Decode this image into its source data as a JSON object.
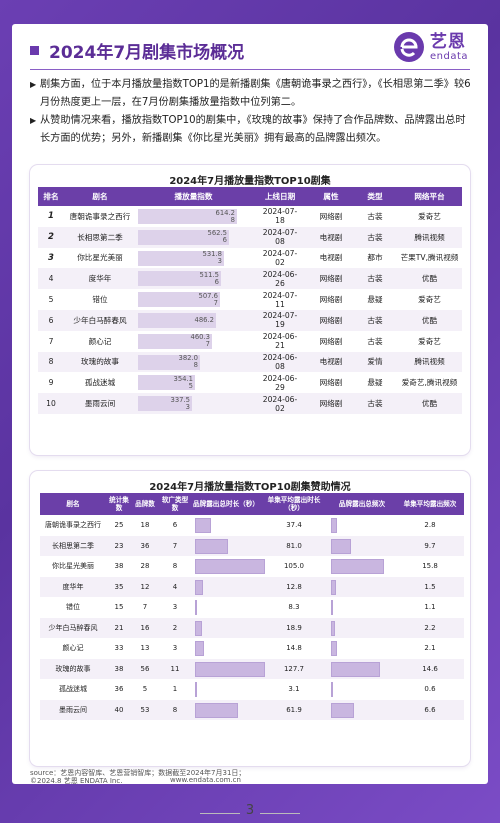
{
  "header": {
    "title": "2024年7月剧集市场概况",
    "logo_cn": "艺恩",
    "logo_en": "endata"
  },
  "bullets": [
    "剧集方面，位于本月播放量指数TOP1的是新播剧集《唐朝诡事录之西行》，《长相思第二季》较6月份热度更上一层，在7月份剧集播放量指数中位列第二。",
    "从赞助情况来看，播放指数TOP10的剧集中，《玫瑰的故事》保持了合作品牌数、品牌露出总时长方面的优势；另外，新播剧集《你比星光美丽》拥有最高的品牌露出频次。"
  ],
  "table1": {
    "title": "2024年7月播放量指数TOP10剧集",
    "headers": [
      "排名",
      "剧名",
      "播放量指数",
      "上线日期",
      "属性",
      "类型",
      "网络平台"
    ],
    "max_index": 700,
    "rows": [
      {
        "rank": "1",
        "name": "唐朝诡事录之西行",
        "index": 614.28,
        "index_label": "614.2\n8",
        "date": "2024-07-\n18",
        "attr": "网络剧",
        "genre": "古装",
        "platform": "爱奇艺"
      },
      {
        "rank": "2",
        "name": "长相思第二季",
        "index": 562.56,
        "index_label": "562.5\n6",
        "date": "2024-07-\n08",
        "attr": "电视剧",
        "genre": "古装",
        "platform": "腾讯视频"
      },
      {
        "rank": "3",
        "name": "你比星光美丽",
        "index": 531.83,
        "index_label": "531.8\n3",
        "date": "2024-07-\n02",
        "attr": "电视剧",
        "genre": "都市",
        "platform": "芒果TV,腾讯视频"
      },
      {
        "rank": "4",
        "name": "度华年",
        "index": 511.56,
        "index_label": "511.5\n6",
        "date": "2024-06-\n26",
        "attr": "网络剧",
        "genre": "古装",
        "platform": "优酷"
      },
      {
        "rank": "5",
        "name": "错位",
        "index": 507.67,
        "index_label": "507.6\n7",
        "date": "2024-07-\n11",
        "attr": "网络剧",
        "genre": "悬疑",
        "platform": "爱奇艺"
      },
      {
        "rank": "6",
        "name": "少年白马醉春风",
        "index": 486.2,
        "index_label": "486.2",
        "date": "2024-07-\n19",
        "attr": "网络剧",
        "genre": "古装",
        "platform": "优酷"
      },
      {
        "rank": "7",
        "name": "颜心记",
        "index": 460.37,
        "index_label": "460.3\n7",
        "date": "2024-06-\n21",
        "attr": "网络剧",
        "genre": "古装",
        "platform": "爱奇艺"
      },
      {
        "rank": "8",
        "name": "玫瑰的故事",
        "index": 382.08,
        "index_label": "382.0\n8",
        "date": "2024-06-\n08",
        "attr": "电视剧",
        "genre": "爱情",
        "platform": "腾讯视频"
      },
      {
        "rank": "9",
        "name": "孤战迷城",
        "index": 354.15,
        "index_label": "354.1\n5",
        "date": "2024-06-\n29",
        "attr": "网络剧",
        "genre": "悬疑",
        "platform": "爱奇艺,腾讯视频"
      },
      {
        "rank": "10",
        "name": "墨雨云间",
        "index": 337.53,
        "index_label": "337.5\n3",
        "date": "2024-06-\n02",
        "attr": "网络剧",
        "genre": "古装",
        "platform": "优酷"
      }
    ]
  },
  "table2": {
    "title": "2024年7月播放量指数TOP10剧集赞助情况",
    "headers": [
      "剧名",
      "统计集数",
      "品牌数",
      "软广类型数",
      "品牌露出总时长（秒）",
      "单集平均露出时长（秒）",
      "品牌露出总频次",
      "单集平均露出频次"
    ],
    "max_total_duration": 4000,
    "max_total_freq": 700,
    "rows": [
      {
        "name": "唐朝诡事录之西行",
        "episodes": "25",
        "brands": "18",
        "types": "6",
        "total_duration": 935,
        "avg_duration": "37.4",
        "total_freq": 70,
        "avg_freq": "2.8"
      },
      {
        "name": "长相思第二季",
        "episodes": "23",
        "brands": "36",
        "types": "7",
        "total_duration": 1863,
        "avg_duration": "81.0",
        "total_freq": 223,
        "avg_freq": "9.7"
      },
      {
        "name": "你比星光美丽",
        "episodes": "38",
        "brands": "28",
        "types": "8",
        "total_duration": 3990,
        "avg_duration": "105.0",
        "total_freq": 600,
        "avg_freq": "15.8"
      },
      {
        "name": "度华年",
        "episodes": "35",
        "brands": "12",
        "types": "4",
        "total_duration": 448,
        "avg_duration": "12.8",
        "total_freq": 53,
        "avg_freq": "1.5"
      },
      {
        "name": "错位",
        "episodes": "15",
        "brands": "7",
        "types": "3",
        "total_duration": 125,
        "avg_duration": "8.3",
        "total_freq": 17,
        "avg_freq": "1.1"
      },
      {
        "name": "少年白马醉春风",
        "episodes": "21",
        "brands": "16",
        "types": "2",
        "total_duration": 397,
        "avg_duration": "18.9",
        "total_freq": 46,
        "avg_freq": "2.2"
      },
      {
        "name": "颜心记",
        "episodes": "33",
        "brands": "13",
        "types": "3",
        "total_duration": 488,
        "avg_duration": "14.8",
        "total_freq": 69,
        "avg_freq": "2.1"
      },
      {
        "name": "玫瑰的故事",
        "episodes": "38",
        "brands": "56",
        "types": "11",
        "total_duration": 4853,
        "avg_duration": "127.7",
        "total_freq": 555,
        "avg_freq": "14.6"
      },
      {
        "name": "孤战迷城",
        "episodes": "36",
        "brands": "5",
        "types": "1",
        "total_duration": 112,
        "avg_duration": "3.1",
        "total_freq": 22,
        "avg_freq": "0.6"
      },
      {
        "name": "墨雨云间",
        "episodes": "40",
        "brands": "53",
        "types": "8",
        "total_duration": 2476,
        "avg_duration": "61.9",
        "total_freq": 264,
        "avg_freq": "6.6"
      }
    ]
  },
  "footer": {
    "source": "source：艺恩内容智库、艺恩营销智库；数据截至2024年7月31日；",
    "copyright": "©2024.8 艺恩 ENDATA Inc.",
    "website": "www.endata.com.cn",
    "page": "3"
  },
  "colors": {
    "brand": "#6a3aad",
    "header_bg": "#6b3fa8",
    "bar": "#ddd2ea"
  }
}
